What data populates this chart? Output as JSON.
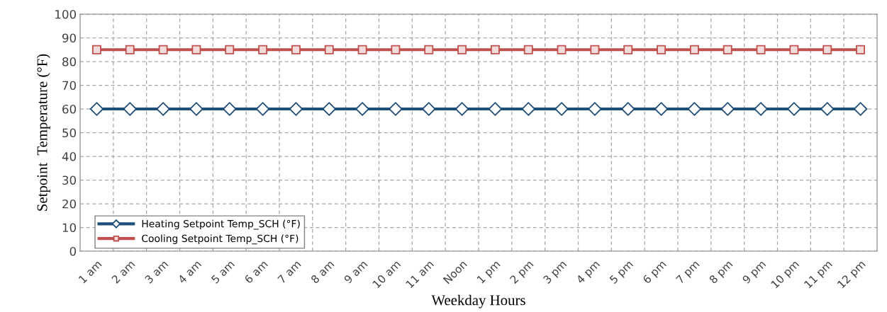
{
  "chart_data": {
    "type": "line",
    "xlabel": "Weekday Hours",
    "ylabel": "Setpoint  Temperature (°F)",
    "categories": [
      "1 am",
      "2 am",
      "3 am",
      "4 am",
      "5 am",
      "6 am",
      "7 am",
      "8 am",
      "9 am",
      "10 am",
      "11 am",
      "Noon",
      "1 pm",
      "2 pm",
      "3 pm",
      "4 pm",
      "5 pm",
      "6 pm",
      "7 pm",
      "8 pm",
      "9 pm",
      "10 pm",
      "11 pm",
      "12 pm"
    ],
    "series": [
      {
        "name": "Heating Setpoint Temp_SCH (°F)",
        "color": "#1f4e79",
        "marker": "diamond",
        "values": [
          60,
          60,
          60,
          60,
          60,
          60,
          60,
          60,
          60,
          60,
          60,
          60,
          60,
          60,
          60,
          60,
          60,
          60,
          60,
          60,
          60,
          60,
          60,
          60
        ]
      },
      {
        "name": "Cooling Setpoint Temp_SCH (°F)",
        "color": "#c0504d",
        "marker": "square",
        "values": [
          85,
          85,
          85,
          85,
          85,
          85,
          85,
          85,
          85,
          85,
          85,
          85,
          85,
          85,
          85,
          85,
          85,
          85,
          85,
          85,
          85,
          85,
          85,
          85
        ]
      }
    ],
    "ylim": [
      0,
      100
    ],
    "yticks": [
      0,
      10,
      20,
      30,
      40,
      50,
      60,
      70,
      80,
      90,
      100
    ],
    "grid": true,
    "legend": "bottom left",
    "line_style": "solid"
  }
}
